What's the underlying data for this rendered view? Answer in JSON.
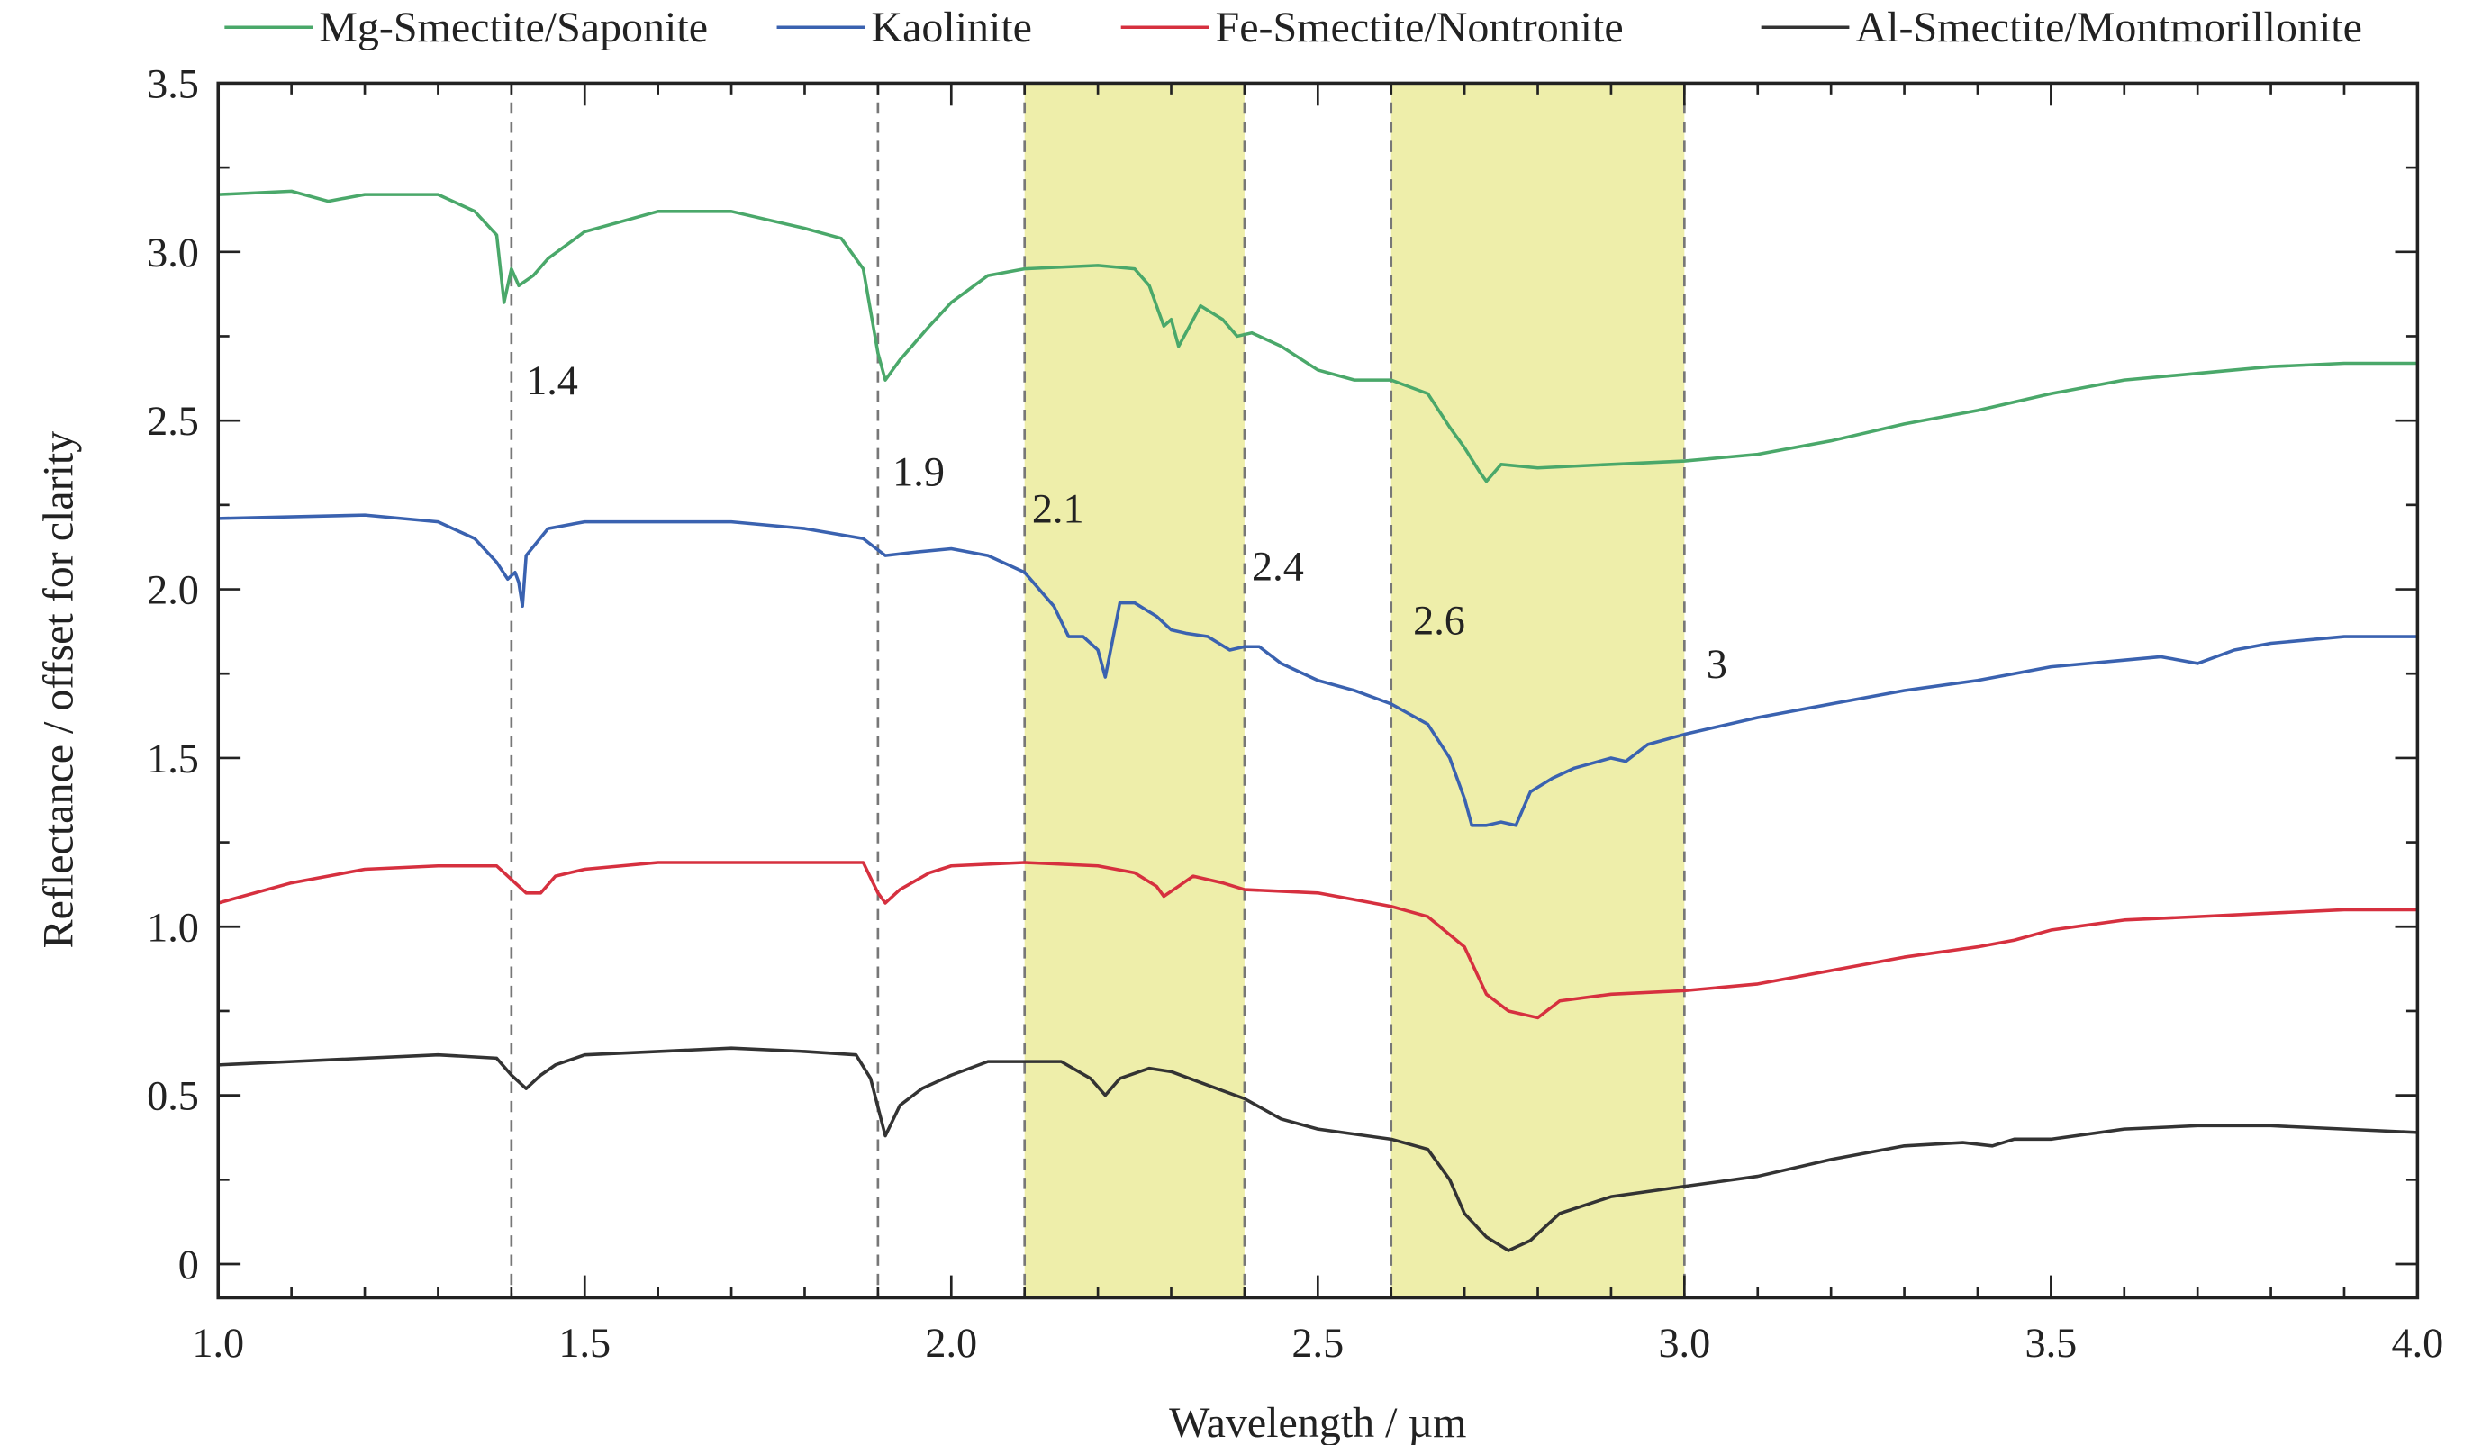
{
  "chart_data": {
    "type": "line",
    "xlabel": "Wavelength / µm",
    "ylabel": "Reflectance / offset for clarity",
    "xlim": [
      1.0,
      4.0
    ],
    "ylim": [
      -0.1,
      3.5
    ],
    "xticks": [
      "1.0",
      "1.5",
      "2.0",
      "2.5",
      "3.0",
      "3.5",
      "4.0"
    ],
    "yticks": [
      "0",
      "0.5",
      "1.0",
      "1.5",
      "2.0",
      "2.5",
      "3.0",
      "3.5"
    ],
    "legend_position": "top",
    "grid": false,
    "shaded_bands": [
      [
        2.1,
        2.4
      ],
      [
        2.6,
        3.0
      ]
    ],
    "shade_color": "#eeeeaa",
    "reference_lines": [
      1.4,
      1.9,
      2.1,
      2.4,
      2.6,
      3.0
    ],
    "annotations": [
      {
        "text": "1.4",
        "x": 1.42,
        "y": 2.62
      },
      {
        "text": "1.9",
        "x": 1.92,
        "y": 2.35
      },
      {
        "text": "2.1",
        "x": 2.11,
        "y": 2.24
      },
      {
        "text": "2.4",
        "x": 2.41,
        "y": 2.07
      },
      {
        "text": "2.6",
        "x": 2.63,
        "y": 1.91
      },
      {
        "text": "3",
        "x": 3.03,
        "y": 1.78
      }
    ],
    "series": [
      {
        "name": "Mg-Smectite/Saponite",
        "color": "#4aa86a",
        "x": [
          1.0,
          1.1,
          1.15,
          1.2,
          1.3,
          1.35,
          1.38,
          1.39,
          1.4,
          1.41,
          1.43,
          1.45,
          1.5,
          1.6,
          1.7,
          1.8,
          1.85,
          1.88,
          1.9,
          1.91,
          1.93,
          1.97,
          2.0,
          2.05,
          2.1,
          2.2,
          2.25,
          2.27,
          2.29,
          2.3,
          2.31,
          2.32,
          2.34,
          2.37,
          2.39,
          2.41,
          2.45,
          2.5,
          2.55,
          2.6,
          2.65,
          2.68,
          2.7,
          2.72,
          2.73,
          2.75,
          2.8,
          2.9,
          3.0,
          3.1,
          3.2,
          3.3,
          3.4,
          3.5,
          3.6,
          3.7,
          3.8,
          3.9,
          4.0
        ],
        "y": [
          3.17,
          3.18,
          3.15,
          3.17,
          3.17,
          3.12,
          3.05,
          2.85,
          2.95,
          2.9,
          2.93,
          2.98,
          3.06,
          3.12,
          3.12,
          3.07,
          3.04,
          2.95,
          2.7,
          2.62,
          2.68,
          2.78,
          2.85,
          2.93,
          2.95,
          2.96,
          2.95,
          2.9,
          2.78,
          2.8,
          2.72,
          2.76,
          2.84,
          2.8,
          2.75,
          2.76,
          2.72,
          2.65,
          2.62,
          2.62,
          2.58,
          2.48,
          2.42,
          2.35,
          2.32,
          2.37,
          2.36,
          2.37,
          2.38,
          2.4,
          2.44,
          2.49,
          2.53,
          2.58,
          2.62,
          2.64,
          2.66,
          2.67,
          2.67
        ]
      },
      {
        "name": "Kaolinite",
        "color": "#3a62b0",
        "x": [
          1.0,
          1.2,
          1.3,
          1.35,
          1.38,
          1.395,
          1.405,
          1.41,
          1.415,
          1.42,
          1.45,
          1.5,
          1.6,
          1.7,
          1.8,
          1.88,
          1.91,
          1.95,
          2.0,
          2.05,
          2.1,
          2.14,
          2.16,
          2.18,
          2.2,
          2.21,
          2.22,
          2.23,
          2.25,
          2.28,
          2.3,
          2.32,
          2.35,
          2.38,
          2.4,
          2.42,
          2.45,
          2.5,
          2.55,
          2.6,
          2.65,
          2.68,
          2.7,
          2.71,
          2.73,
          2.75,
          2.77,
          2.79,
          2.82,
          2.85,
          2.9,
          2.92,
          2.95,
          3.0,
          3.1,
          3.2,
          3.3,
          3.4,
          3.45,
          3.5,
          3.6,
          3.65,
          3.7,
          3.75,
          3.8,
          3.9,
          4.0
        ],
        "y": [
          2.21,
          2.22,
          2.2,
          2.15,
          2.08,
          2.03,
          2.05,
          2.02,
          1.95,
          2.1,
          2.18,
          2.2,
          2.2,
          2.2,
          2.18,
          2.15,
          2.1,
          2.11,
          2.12,
          2.1,
          2.05,
          1.95,
          1.86,
          1.86,
          1.82,
          1.74,
          1.85,
          1.96,
          1.96,
          1.92,
          1.88,
          1.87,
          1.86,
          1.82,
          1.83,
          1.83,
          1.78,
          1.73,
          1.7,
          1.66,
          1.6,
          1.5,
          1.38,
          1.3,
          1.3,
          1.31,
          1.3,
          1.4,
          1.44,
          1.47,
          1.5,
          1.49,
          1.54,
          1.57,
          1.62,
          1.66,
          1.7,
          1.73,
          1.75,
          1.77,
          1.79,
          1.8,
          1.78,
          1.82,
          1.84,
          1.86,
          1.86
        ]
      },
      {
        "name": "Fe-Smectite/Nontronite",
        "color": "#d6303f",
        "x": [
          1.0,
          1.1,
          1.2,
          1.3,
          1.38,
          1.4,
          1.42,
          1.44,
          1.46,
          1.5,
          1.6,
          1.7,
          1.8,
          1.88,
          1.9,
          1.91,
          1.93,
          1.97,
          2.0,
          2.1,
          2.2,
          2.25,
          2.28,
          2.29,
          2.31,
          2.33,
          2.37,
          2.4,
          2.5,
          2.6,
          2.65,
          2.7,
          2.73,
          2.76,
          2.8,
          2.83,
          2.9,
          3.0,
          3.1,
          3.2,
          3.3,
          3.4,
          3.45,
          3.5,
          3.6,
          3.7,
          3.8,
          3.9,
          4.0
        ],
        "y": [
          1.07,
          1.13,
          1.17,
          1.18,
          1.18,
          1.14,
          1.1,
          1.1,
          1.15,
          1.17,
          1.19,
          1.19,
          1.19,
          1.19,
          1.1,
          1.07,
          1.11,
          1.16,
          1.18,
          1.19,
          1.18,
          1.16,
          1.12,
          1.09,
          1.12,
          1.15,
          1.13,
          1.11,
          1.1,
          1.06,
          1.03,
          0.94,
          0.8,
          0.75,
          0.73,
          0.78,
          0.8,
          0.81,
          0.83,
          0.87,
          0.91,
          0.94,
          0.96,
          0.99,
          1.02,
          1.03,
          1.04,
          1.05,
          1.05
        ]
      },
      {
        "name": "Al-Smectite/Montmorillonite",
        "color": "#333333",
        "x": [
          1.0,
          1.1,
          1.2,
          1.3,
          1.38,
          1.4,
          1.42,
          1.44,
          1.46,
          1.5,
          1.6,
          1.7,
          1.8,
          1.87,
          1.89,
          1.91,
          1.93,
          1.96,
          2.0,
          2.05,
          2.1,
          2.15,
          2.19,
          2.21,
          2.23,
          2.27,
          2.3,
          2.35,
          2.4,
          2.45,
          2.5,
          2.6,
          2.65,
          2.68,
          2.7,
          2.73,
          2.76,
          2.79,
          2.83,
          2.9,
          3.0,
          3.1,
          3.2,
          3.3,
          3.38,
          3.42,
          3.45,
          3.5,
          3.6,
          3.7,
          3.8,
          3.9,
          4.0
        ],
        "y": [
          0.59,
          0.6,
          0.61,
          0.62,
          0.61,
          0.56,
          0.52,
          0.56,
          0.59,
          0.62,
          0.63,
          0.64,
          0.63,
          0.62,
          0.55,
          0.38,
          0.47,
          0.52,
          0.56,
          0.6,
          0.6,
          0.6,
          0.55,
          0.5,
          0.55,
          0.58,
          0.57,
          0.53,
          0.49,
          0.43,
          0.4,
          0.37,
          0.34,
          0.25,
          0.15,
          0.08,
          0.04,
          0.07,
          0.15,
          0.2,
          0.23,
          0.26,
          0.31,
          0.35,
          0.36,
          0.35,
          0.37,
          0.37,
          0.4,
          0.41,
          0.41,
          0.4,
          0.39
        ]
      }
    ]
  }
}
